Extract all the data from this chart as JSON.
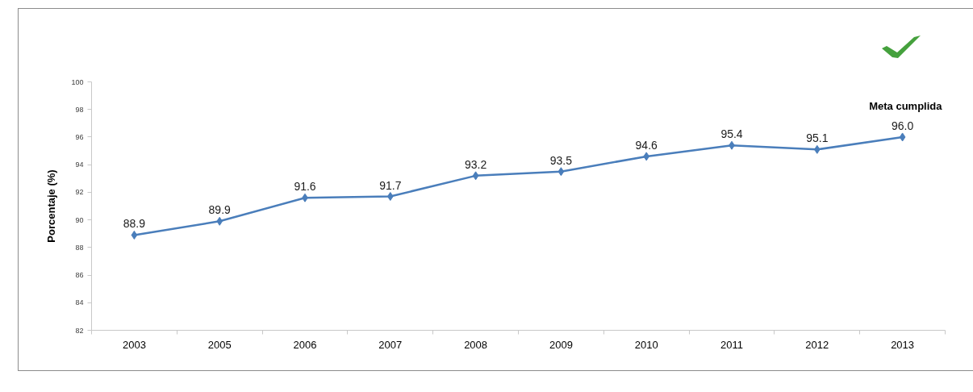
{
  "chart_data": {
    "type": "line",
    "ylabel": "Porcentaje (%)",
    "categories": [
      "2003",
      "2005",
      "2006",
      "2007",
      "2008",
      "2009",
      "2010",
      "2011",
      "2012",
      "2013"
    ],
    "values": [
      88.9,
      89.9,
      91.6,
      91.7,
      93.2,
      93.5,
      94.6,
      95.4,
      95.1,
      96.0
    ],
    "value_labels": [
      "88.9",
      "89.9",
      "91.6",
      "91.7",
      "93.2",
      "93.5",
      "94.6",
      "95.4",
      "95.1",
      "96.0"
    ],
    "color": "#4a7ebb",
    "ylim": [
      82,
      100
    ],
    "yticks": [
      82,
      84,
      86,
      88,
      90,
      92,
      94,
      96,
      98,
      100
    ],
    "grid": false,
    "marker": "diamond",
    "line_style": "solid",
    "annotations": [
      "Meta cumplida"
    ]
  }
}
